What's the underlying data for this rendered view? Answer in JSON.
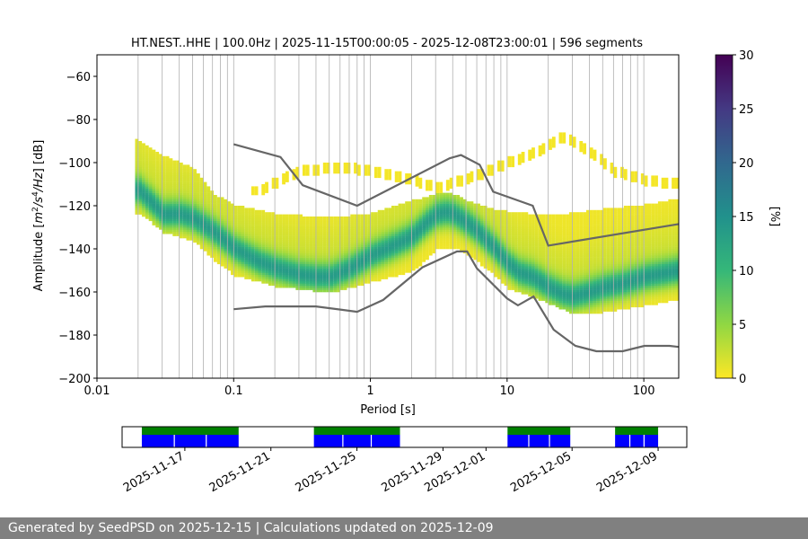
{
  "chart_data": [
    {
      "type": "heatmap",
      "title": "HT.NEST..HHE | 100.0Hz | 2025-11-15T00:00:05 - 2025-12-08T23:00:01 | 596 segments",
      "xlabel": "Period [s]",
      "ylabel_parts": [
        "Amplitude [",
        "m",
        "2",
        "/",
        "s",
        "4",
        "/Hz",
        "] [dB]"
      ],
      "xscale": "log",
      "xlim": [
        0.01,
        180
      ],
      "ylim": [
        -200,
        -50
      ],
      "grid": "vertical",
      "x_ticks": [
        "0.01",
        "0.1",
        "1",
        "10",
        "100"
      ],
      "y_ticks": [
        "−60",
        "−80",
        "−100",
        "−120",
        "−140",
        "−160",
        "−180",
        "−200"
      ],
      "y_tick_values": [
        -60,
        -80,
        -100,
        -120,
        -140,
        -160,
        -180,
        -200
      ],
      "colorbar": {
        "label": "[%]",
        "range": [
          0,
          30
        ],
        "ticks": [
          "0",
          "5",
          "10",
          "15",
          "20",
          "25",
          "30"
        ],
        "colormap": "viridis_r",
        "colors": [
          "#fde725",
          "#90d743",
          "#35b779",
          "#21918c",
          "#31688e",
          "#443983",
          "#440154"
        ]
      },
      "mode_curve": [
        [
          0.02,
          -113
        ],
        [
          0.025,
          -119
        ],
        [
          0.03,
          -124
        ],
        [
          0.04,
          -124
        ],
        [
          0.05,
          -126
        ],
        [
          0.07,
          -132
        ],
        [
          0.1,
          -140
        ],
        [
          0.15,
          -146
        ],
        [
          0.2,
          -149
        ],
        [
          0.3,
          -152
        ],
        [
          0.4,
          -153
        ],
        [
          0.5,
          -153
        ],
        [
          0.7,
          -149
        ],
        [
          1,
          -143
        ],
        [
          1.5,
          -138
        ],
        [
          2,
          -134
        ],
        [
          2.5,
          -128
        ],
        [
          3,
          -124
        ],
        [
          3.5,
          -123
        ],
        [
          4,
          -124
        ],
        [
          5,
          -128
        ],
        [
          6,
          -132
        ],
        [
          8,
          -140
        ],
        [
          10,
          -147
        ],
        [
          12,
          -151
        ],
        [
          15,
          -153
        ],
        [
          20,
          -158
        ],
        [
          25,
          -161
        ],
        [
          30,
          -162
        ],
        [
          40,
          -160
        ],
        [
          50,
          -158
        ],
        [
          70,
          -156
        ],
        [
          100,
          -153
        ],
        [
          180,
          -150
        ]
      ],
      "upper_spread": [
        [
          0.02,
          -90
        ],
        [
          0.03,
          -97
        ],
        [
          0.05,
          -103
        ],
        [
          0.07,
          -115
        ],
        [
          0.1,
          -120
        ],
        [
          0.2,
          -124
        ],
        [
          0.5,
          -126
        ],
        [
          1,
          -124
        ],
        [
          2,
          -118
        ],
        [
          3,
          -115
        ],
        [
          4,
          -115
        ],
        [
          5,
          -118
        ],
        [
          8,
          -122
        ],
        [
          10,
          -123
        ],
        [
          20,
          -125
        ],
        [
          50,
          -122
        ],
        [
          100,
          -120
        ],
        [
          180,
          -117
        ]
      ],
      "lower_spread": [
        [
          0.02,
          -123
        ],
        [
          0.03,
          -132
        ],
        [
          0.05,
          -136
        ],
        [
          0.07,
          -145
        ],
        [
          0.1,
          -152
        ],
        [
          0.2,
          -157
        ],
        [
          0.5,
          -160
        ],
        [
          1,
          -155
        ],
        [
          2,
          -150
        ],
        [
          3,
          -140
        ],
        [
          4,
          -139
        ],
        [
          5,
          -142
        ],
        [
          8,
          -152
        ],
        [
          10,
          -158
        ],
        [
          20,
          -165
        ],
        [
          30,
          -170
        ],
        [
          50,
          -169
        ],
        [
          100,
          -166
        ],
        [
          180,
          -163
        ]
      ],
      "upper_noise_model": [
        [
          0.1,
          -91.5
        ],
        [
          0.22,
          -97.4
        ],
        [
          0.32,
          -110.5
        ],
        [
          0.8,
          -120
        ],
        [
          3.8,
          -98
        ],
        [
          4.6,
          -96.5
        ],
        [
          6.3,
          -101
        ],
        [
          7.9,
          -113.5
        ],
        [
          15.4,
          -120
        ],
        [
          20,
          -138.5
        ],
        [
          180,
          -128.5
        ]
      ],
      "lower_noise_model": [
        [
          0.1,
          -168
        ],
        [
          0.17,
          -166.7
        ],
        [
          0.4,
          -166.7
        ],
        [
          0.8,
          -169.2
        ],
        [
          1.24,
          -163.7
        ],
        [
          2.4,
          -148.6
        ],
        [
          4.3,
          -141.2
        ],
        [
          5.1,
          -141.2
        ],
        [
          6.0,
          -149
        ],
        [
          10,
          -163
        ],
        [
          12,
          -166.2
        ],
        [
          15.6,
          -162.1
        ],
        [
          21.9,
          -177.5
        ],
        [
          31.6,
          -185
        ],
        [
          45,
          -187.5
        ],
        [
          70,
          -187.5
        ],
        [
          101,
          -185
        ],
        [
          154,
          -185
        ],
        [
          180,
          -185.5
        ]
      ],
      "ghost_band": [
        [
          0.15,
          -113
        ],
        [
          0.3,
          -104
        ],
        [
          0.6,
          -102
        ],
        [
          1,
          -104
        ],
        [
          2,
          -108
        ],
        [
          3,
          -112
        ],
        [
          6,
          -106
        ],
        [
          10,
          -100
        ],
        [
          15,
          -96
        ],
        [
          25,
          -88
        ],
        [
          40,
          -95
        ],
        [
          60,
          -104
        ],
        [
          100,
          -108
        ],
        [
          180,
          -110
        ]
      ]
    },
    {
      "type": "timeline",
      "x_ticks": [
        "2025-11-17",
        "2025-11-21",
        "2025-11-25",
        "2025-11-29",
        "2025-12-01",
        "2025-12-05",
        "2025-12-09"
      ],
      "x_tick_dates": [
        "2025-11-17",
        "2025-11-21",
        "2025-11-25",
        "2025-11-29",
        "2025-12-01",
        "2025-12-05",
        "2025-12-09"
      ],
      "xlim": [
        "2025-11-14T02:00",
        "2025-12-10T08:00"
      ],
      "data_available": [
        [
          "2025-11-15T00:00",
          "2025-11-19T12:00"
        ],
        [
          "2025-11-23T00:00",
          "2025-11-27T00:00"
        ],
        [
          "2025-12-02T00:00",
          "2025-12-04T22:00"
        ],
        [
          "2025-12-07T00:00",
          "2025-12-09T00:00"
        ]
      ],
      "psd_used": [
        [
          "2025-11-15T00:00",
          "2025-11-19T12:00"
        ],
        [
          "2025-11-23T00:00",
          "2025-11-27T00:00"
        ],
        [
          "2025-12-02T00:00",
          "2025-12-04T22:00"
        ],
        [
          "2025-12-07T00:00",
          "2025-12-09T00:00"
        ]
      ],
      "colors": {
        "available": "#008000",
        "psd": "#0000ff",
        "gap": "#ffffff"
      }
    }
  ],
  "footer": {
    "text": "Generated by SeedPSD on 2025-12-15 | Calculations updated on 2025-12-09"
  }
}
